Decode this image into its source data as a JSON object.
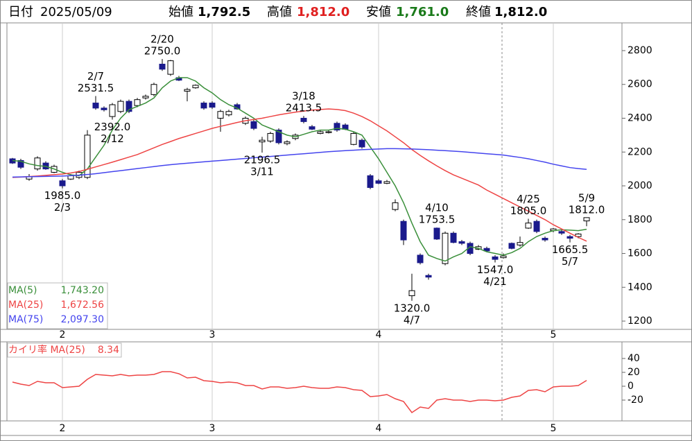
{
  "header": {
    "date_label": "日付",
    "date": "2025/05/09",
    "items": [
      {
        "label": "始値",
        "value": "1,792.5",
        "color": "#000000"
      },
      {
        "label": "高値",
        "value": "1,812.0",
        "color": "#e02020"
      },
      {
        "label": "安値",
        "value": "1,761.0",
        "color": "#1a7a1a"
      },
      {
        "label": "終値",
        "value": "1,812.0",
        "color": "#000000"
      }
    ]
  },
  "chart_data": [
    {
      "type": "candlestick",
      "up_color": "#ffffff",
      "down_color": "#1a1a8c",
      "grid": true,
      "categories": [
        null,
        null,
        null,
        null,
        null,
        null,
        "2",
        null,
        null,
        null,
        null,
        null,
        null,
        null,
        null,
        null,
        null,
        null,
        null,
        null,
        null,
        null,
        null,
        null,
        "3",
        null,
        null,
        null,
        null,
        null,
        null,
        null,
        null,
        null,
        null,
        null,
        null,
        null,
        null,
        null,
        null,
        null,
        null,
        null,
        "4",
        null,
        null,
        null,
        null,
        null,
        null,
        null,
        null,
        null,
        null,
        null,
        null,
        null,
        null,
        null,
        null,
        null,
        null,
        null,
        null,
        "5",
        null,
        null,
        null,
        null
      ],
      "open": [
        2160,
        2150,
        2040,
        2100,
        2135,
        2080,
        2030,
        2040,
        2050,
        2050,
        2490,
        2460,
        2410,
        2440,
        2500,
        2475,
        2520,
        2540,
        2720,
        2660,
        2640,
        2560,
        2580,
        2490,
        2490,
        2400,
        2420,
        2480,
        2370,
        2380,
        2260,
        2265,
        2330,
        2250,
        2280,
        2400,
        2350,
        2310,
        2315,
        2370,
        2360,
        2245,
        2270,
        2060,
        2030,
        2015,
        1860,
        1790,
        1350,
        1590,
        1470,
        1750,
        1540,
        1720,
        1670,
        1660,
        1625,
        1630,
        1580,
        1575,
        1660,
        1650,
        1750,
        1790,
        1690,
        1735,
        1730,
        1700,
        1700,
        1792.5
      ],
      "high": [
        2165,
        2160,
        2070,
        2175,
        2145,
        2125,
        2040,
        2070,
        2090,
        2330,
        2531.5,
        2470,
        2490,
        2510,
        2510,
        2520,
        2540,
        2610,
        2750,
        2745,
        2650,
        2580,
        2600,
        2500,
        2500,
        2450,
        2450,
        2490,
        2410,
        2390,
        2290,
        2320,
        2340,
        2270,
        2310,
        2413.5,
        2360,
        2330,
        2330,
        2380,
        2370,
        2320,
        2280,
        2070,
        2040,
        2035,
        1920,
        1800,
        1480,
        1600,
        1480,
        1753.5,
        1730,
        1730,
        1680,
        1670,
        1650,
        1640,
        1590,
        1600,
        1665,
        1700,
        1805,
        1800,
        1700,
        1750,
        1740,
        1710,
        1720,
        1812
      ],
      "low": [
        2130,
        2100,
        2030,
        2090,
        2095,
        2075,
        1985,
        2035,
        2040,
        2040,
        2450,
        2440,
        2392,
        2430,
        2430,
        2465,
        2510,
        2530,
        2680,
        2650,
        2620,
        2500,
        2575,
        2450,
        2455,
        2320,
        2410,
        2450,
        2360,
        2330,
        2196.5,
        2255,
        2245,
        2240,
        2270,
        2370,
        2330,
        2305,
        2310,
        2320,
        2330,
        2240,
        2220,
        1980,
        2010,
        2010,
        1850,
        1650,
        1320,
        1535,
        1445,
        1680,
        1530,
        1660,
        1650,
        1590,
        1620,
        1610,
        1547,
        1570,
        1625,
        1640,
        1745,
        1720,
        1670,
        1725,
        1710,
        1665.5,
        1690,
        1761
      ],
      "close": [
        2135,
        2110,
        2055,
        2165,
        2100,
        2115,
        2000,
        2060,
        2080,
        2300,
        2460,
        2450,
        2480,
        2500,
        2440,
        2510,
        2530,
        2600,
        2690,
        2740,
        2625,
        2570,
        2595,
        2460,
        2465,
        2440,
        2440,
        2455,
        2400,
        2340,
        2270,
        2310,
        2255,
        2260,
        2300,
        2380,
        2335,
        2320,
        2320,
        2330,
        2335,
        2310,
        2230,
        1990,
        2015,
        2025,
        1900,
        1680,
        1380,
        1545,
        1460,
        1685,
        1720,
        1665,
        1660,
        1600,
        1640,
        1615,
        1565,
        1585,
        1630,
        1665,
        1780,
        1730,
        1680,
        1745,
        1720,
        1690,
        1715,
        1812
      ],
      "series": [
        {
          "name": "MA(5)",
          "color": "#3a8f3a",
          "legend_value": "1,743.20",
          "values": [
            2150,
            2145,
            2130,
            2120,
            2115,
            2100,
            2080,
            2065,
            2060,
            2100,
            2170,
            2240,
            2330,
            2400,
            2450,
            2470,
            2490,
            2520,
            2580,
            2620,
            2640,
            2640,
            2620,
            2580,
            2550,
            2510,
            2480,
            2460,
            2430,
            2400,
            2360,
            2340,
            2320,
            2300,
            2290,
            2305,
            2320,
            2330,
            2330,
            2340,
            2335,
            2320,
            2300,
            2230,
            2160,
            2080,
            2000,
            1900,
            1780,
            1670,
            1590,
            1570,
            1555,
            1580,
            1600,
            1640,
            1630,
            1610,
            1600,
            1590,
            1605,
            1630,
            1670,
            1700,
            1720,
            1735,
            1740,
            1738,
            1735,
            1743.2
          ]
        },
        {
          "name": "MA(25)",
          "color": "#ee4444",
          "legend_value": "1,672.56",
          "values": [
            2050,
            2052,
            2055,
            2058,
            2062,
            2066,
            2070,
            2076,
            2085,
            2098,
            2112,
            2126,
            2140,
            2155,
            2170,
            2185,
            2205,
            2225,
            2245,
            2262,
            2280,
            2295,
            2310,
            2325,
            2340,
            2352,
            2363,
            2375,
            2385,
            2393,
            2400,
            2410,
            2420,
            2428,
            2436,
            2442,
            2448,
            2452,
            2455,
            2452,
            2445,
            2430,
            2410,
            2385,
            2355,
            2325,
            2290,
            2255,
            2215,
            2180,
            2148,
            2118,
            2090,
            2065,
            2045,
            2025,
            2005,
            1975,
            1950,
            1925,
            1900,
            1875,
            1850,
            1825,
            1800,
            1770,
            1745,
            1720,
            1695,
            1672.56
          ]
        },
        {
          "name": "MA(75)",
          "color": "#4444ee",
          "legend_value": "2,097.30",
          "values": [
            2052,
            2053,
            2054,
            2055,
            2056,
            2057,
            2058,
            2060,
            2063,
            2067,
            2072,
            2078,
            2084,
            2090,
            2096,
            2102,
            2108,
            2114,
            2120,
            2125,
            2130,
            2134,
            2138,
            2142,
            2146,
            2150,
            2154,
            2158,
            2162,
            2166,
            2170,
            2174,
            2178,
            2182,
            2186,
            2190,
            2194,
            2198,
            2202,
            2205,
            2208,
            2211,
            2214,
            2216,
            2218,
            2220,
            2220,
            2219,
            2218,
            2216,
            2214,
            2211,
            2208,
            2205,
            2202,
            2198,
            2194,
            2190,
            2186,
            2182,
            2175,
            2168,
            2160,
            2150,
            2140,
            2128,
            2118,
            2108,
            2102,
            2097.3
          ]
        }
      ],
      "ylim": [
        1151,
        2964
      ],
      "yticks": [
        1200,
        1400,
        1600,
        1800,
        2000,
        2200,
        2400,
        2600,
        2800
      ],
      "annotations_high": [
        {
          "date": "2/7",
          "value": 2531.5,
          "value_label": "2531.5"
        },
        {
          "date": "2/20",
          "value": 2750,
          "value_label": "2750.0"
        },
        {
          "date": "3/18",
          "value": 2413.5,
          "value_label": "2413.5"
        },
        {
          "date": "4/10",
          "value": 1753.5,
          "value_label": "1753.5"
        },
        {
          "date": "4/25",
          "value": 1805,
          "value_label": "1805.0"
        },
        {
          "date": "5/9",
          "value": 1812,
          "value_label": "1812.0"
        }
      ],
      "annotations_low": [
        {
          "date": "2/3",
          "value": 1985,
          "value_label": "1985.0"
        },
        {
          "date": "2/12",
          "value": 2392,
          "value_label": "2392.0"
        },
        {
          "date": "3/11",
          "value": 2196.5,
          "value_label": "2196.5"
        },
        {
          "date": "4/7",
          "value": 1320,
          "value_label": "1320.0"
        },
        {
          "date": "4/21",
          "value": 1547,
          "value_label": "1547.0"
        },
        {
          "date": "5/7",
          "value": 1665.5,
          "value_label": "1665.5"
        }
      ]
    },
    {
      "type": "line",
      "grid": true,
      "categories": [
        null,
        null,
        null,
        null,
        null,
        null,
        "2",
        null,
        null,
        null,
        null,
        null,
        null,
        null,
        null,
        null,
        null,
        null,
        null,
        null,
        null,
        null,
        null,
        null,
        "3",
        null,
        null,
        null,
        null,
        null,
        null,
        null,
        null,
        null,
        null,
        null,
        null,
        null,
        null,
        null,
        null,
        null,
        null,
        null,
        "4",
        null,
        null,
        null,
        null,
        null,
        null,
        null,
        null,
        null,
        null,
        null,
        null,
        null,
        null,
        null,
        null,
        null,
        null,
        null,
        null,
        "5",
        null,
        null,
        null,
        null
      ],
      "series": [
        {
          "name": "カイリ率 MA(25)",
          "color": "#ee4444",
          "legend_value": "8.34",
          "values": [
            6,
            3,
            1,
            7,
            5,
            5,
            -2,
            -1,
            0,
            10,
            17,
            16,
            15,
            17,
            15,
            16,
            16,
            17,
            21,
            21,
            18,
            12,
            13,
            8,
            7,
            5,
            6,
            5,
            1,
            1,
            -4,
            -1,
            -1,
            -3,
            -2,
            0,
            -2,
            -3,
            -3,
            -1,
            -2,
            -5,
            -6,
            -15,
            -14,
            -12,
            -18,
            -22,
            -38,
            -30,
            -32,
            -20,
            -18,
            -20,
            -20,
            -22,
            -20,
            -20,
            -21,
            -20,
            -16,
            -14,
            -6,
            -5,
            -8,
            -1,
            0,
            0,
            1,
            8.34
          ]
        }
      ],
      "ylim": [
        -50,
        64
      ],
      "yticks": [
        -20,
        0,
        20,
        40
      ]
    }
  ]
}
